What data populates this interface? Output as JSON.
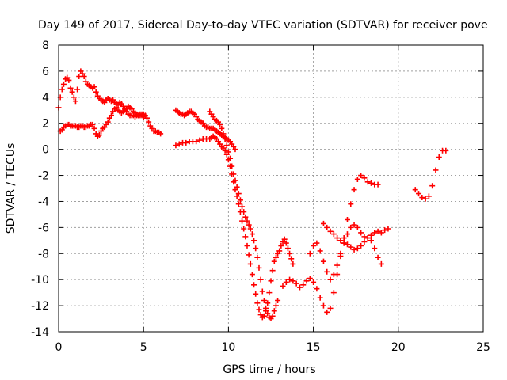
{
  "chart_data": {
    "type": "scatter",
    "title": "Day 149 of 2017, Sidereal Day-to-day VTEC variation (SDTVAR) for receiver pove",
    "xlabel": "GPS time / hours",
    "ylabel": "SDTVAR / TECUs",
    "xlim": [
      0,
      25
    ],
    "ylim": [
      -14,
      8
    ],
    "xticks": [
      0,
      5,
      10,
      15,
      20,
      25
    ],
    "yticks": [
      -14,
      -12,
      -10,
      -8,
      -6,
      -4,
      -2,
      0,
      2,
      4,
      6,
      8
    ],
    "grid": true,
    "marker": "plus",
    "color": "#ff0000",
    "series": [
      {
        "x": [
          0.0,
          0.1,
          0.2,
          0.3,
          0.4,
          0.5,
          0.6,
          0.7,
          0.8,
          0.9,
          1.0,
          1.1,
          1.2,
          1.3,
          1.4,
          1.5,
          1.6,
          1.7,
          1.8,
          1.9,
          2.0,
          2.1,
          2.2,
          2.3,
          2.4,
          2.5,
          2.6,
          2.7,
          2.8,
          2.9,
          3.0,
          3.1,
          3.2,
          3.3,
          3.4,
          3.5,
          3.6,
          3.7,
          3.8,
          3.9,
          4.0,
          4.1,
          4.2,
          4.3,
          4.4,
          4.5,
          4.6,
          4.7,
          4.8,
          4.9,
          5.0,
          5.1,
          5.2,
          5.3,
          5.4,
          5.5,
          5.6,
          5.7,
          5.8,
          5.9,
          6.0
        ],
        "y": [
          3.2,
          4.0,
          4.6,
          5.0,
          5.4,
          5.5,
          5.3,
          4.7,
          4.4,
          4.0,
          3.7,
          4.6,
          5.6,
          6.0,
          5.8,
          5.6,
          5.2,
          5.0,
          4.9,
          4.8,
          4.7,
          4.8,
          4.4,
          4.1,
          3.9,
          3.8,
          3.7,
          3.6,
          3.8,
          3.9,
          3.8,
          3.7,
          3.8,
          3.6,
          3.5,
          3.4,
          3.6,
          3.5,
          3.3,
          3.1,
          2.9,
          2.7,
          2.6,
          2.6,
          2.6,
          2.5,
          2.6,
          2.6,
          2.7,
          2.6,
          2.5,
          2.6,
          2.4,
          2.1,
          1.8,
          1.6,
          1.4,
          1.4,
          1.3,
          1.3,
          1.2
        ]
      },
      {
        "x": [
          0.1,
          0.2,
          0.3,
          0.4,
          0.5,
          0.6,
          0.7,
          0.8,
          0.9,
          1.0,
          1.1,
          1.2,
          1.3,
          1.4,
          1.5,
          1.6,
          1.7,
          1.8,
          1.9,
          2.0,
          2.1,
          2.2,
          2.3,
          2.4,
          2.5,
          2.6,
          2.7,
          2.8,
          2.9,
          3.0,
          3.1,
          3.2,
          3.3,
          3.4,
          3.5,
          3.6,
          3.7,
          3.8,
          3.9,
          4.0,
          4.1,
          4.2,
          4.3,
          4.4,
          4.5,
          4.6,
          4.7,
          4.8,
          4.9,
          5.0
        ],
        "y": [
          1.4,
          1.5,
          1.7,
          1.8,
          1.9,
          1.9,
          1.8,
          1.8,
          1.8,
          1.8,
          1.7,
          1.7,
          1.8,
          1.8,
          1.7,
          1.7,
          1.8,
          1.8,
          1.9,
          1.9,
          1.6,
          1.2,
          1.0,
          1.1,
          1.4,
          1.6,
          1.7,
          1.9,
          2.1,
          2.4,
          2.6,
          2.9,
          3.1,
          3.2,
          3.0,
          2.9,
          2.8,
          2.9,
          3.0,
          3.1,
          3.3,
          3.2,
          3.1,
          2.9,
          2.8,
          2.7,
          2.6,
          2.6,
          2.7,
          2.7
        ]
      },
      {
        "x": [
          6.9,
          7.0,
          7.1,
          7.2,
          7.3,
          7.4,
          7.5,
          7.6,
          7.7,
          7.8,
          7.9,
          8.0,
          8.1,
          8.2,
          8.3,
          8.4,
          8.5,
          8.6,
          8.7,
          8.8,
          8.9,
          9.0,
          9.1,
          9.2,
          9.3,
          9.4,
          9.5,
          9.6,
          9.7,
          9.8,
          9.9,
          10.0,
          10.1,
          10.2,
          10.3,
          10.4
        ],
        "y": [
          3.0,
          2.9,
          2.8,
          2.7,
          2.7,
          2.6,
          2.7,
          2.8,
          2.9,
          2.9,
          2.8,
          2.7,
          2.5,
          2.3,
          2.2,
          2.1,
          2.0,
          1.8,
          1.7,
          1.7,
          1.6,
          1.6,
          1.6,
          1.5,
          1.4,
          1.3,
          1.2,
          1.1,
          1.0,
          0.9,
          0.8,
          0.7,
          0.6,
          0.4,
          0.2,
          0.0
        ]
      },
      {
        "x": [
          6.9,
          7.1,
          7.3,
          7.5,
          7.7,
          7.9,
          8.1,
          8.3,
          8.5,
          8.7,
          8.9,
          9.0,
          9.1,
          9.2,
          9.3,
          9.4,
          9.5,
          9.6,
          9.7,
          9.8,
          9.9,
          10.0,
          10.1,
          10.2,
          10.3,
          10.4,
          10.5,
          10.6,
          10.7,
          10.8,
          10.9,
          11.0,
          11.1,
          11.2,
          11.3,
          11.4,
          11.5,
          11.6,
          11.7,
          11.8,
          11.9,
          12.0,
          12.1,
          12.2,
          12.3,
          12.4,
          12.5,
          12.6,
          12.7,
          12.8,
          12.9,
          13.0,
          13.1,
          13.2,
          13.3,
          13.4,
          13.5,
          13.6,
          13.7,
          13.8
        ],
        "y": [
          0.3,
          0.4,
          0.5,
          0.5,
          0.6,
          0.6,
          0.6,
          0.7,
          0.8,
          0.8,
          0.8,
          0.9,
          1.0,
          0.9,
          0.8,
          0.6,
          0.4,
          0.2,
          0.1,
          -0.1,
          -0.4,
          -0.8,
          -1.3,
          -1.9,
          -2.5,
          -3.1,
          -3.6,
          -4.2,
          -4.8,
          -5.5,
          -6.1,
          -6.7,
          -7.4,
          -8.1,
          -8.8,
          -9.6,
          -10.4,
          -11.1,
          -11.8,
          -12.3,
          -12.7,
          -12.9,
          -12.8,
          -12.4,
          -11.8,
          -11.0,
          -10.1,
          -9.3,
          -8.6,
          -8.3,
          -8.0,
          -7.8,
          -7.4,
          -7.1,
          -6.9,
          -7.2,
          -7.6,
          -8.0,
          -8.4,
          -8.8
        ]
      },
      {
        "x": [
          8.9,
          9.0,
          9.1,
          9.2,
          9.3,
          9.4,
          9.5,
          9.6,
          9.7,
          9.8,
          9.9,
          10.0,
          10.1,
          10.2,
          10.3,
          10.4,
          10.5,
          10.6,
          10.7,
          10.8,
          10.9,
          11.0,
          11.1,
          11.2,
          11.3,
          11.4,
          11.5,
          11.6,
          11.7,
          11.8,
          11.9,
          12.0,
          12.1,
          12.2,
          12.3,
          12.4,
          12.5,
          12.6,
          12.7,
          12.8,
          12.9
        ],
        "y": [
          2.9,
          2.7,
          2.5,
          2.3,
          2.2,
          2.1,
          1.9,
          1.6,
          1.2,
          0.8,
          0.3,
          -0.2,
          -0.7,
          -1.3,
          -1.9,
          -2.4,
          -2.9,
          -3.4,
          -3.9,
          -4.4,
          -4.8,
          -5.2,
          -5.5,
          -5.8,
          -6.1,
          -6.5,
          -7.0,
          -7.6,
          -8.3,
          -9.1,
          -10.0,
          -10.9,
          -11.6,
          -12.2,
          -12.6,
          -12.9,
          -13.0,
          -12.8,
          -12.4,
          -12.0,
          -11.6
        ]
      },
      {
        "x": [
          13.2,
          13.4,
          13.6,
          13.8,
          14.0,
          14.2,
          14.4,
          14.6,
          14.8,
          15.0,
          15.2,
          15.4,
          15.6,
          15.8,
          16.0,
          16.2,
          16.4,
          16.6,
          16.8,
          17.0,
          17.2,
          17.4,
          17.6,
          17.8,
          18.0,
          18.2,
          18.4,
          18.6,
          18.8
        ],
        "y": [
          -10.5,
          -10.2,
          -10.0,
          -10.1,
          -10.3,
          -10.6,
          -10.4,
          -10.1,
          -9.9,
          -10.2,
          -10.7,
          -11.4,
          -12.0,
          -12.5,
          -12.2,
          -11.0,
          -9.6,
          -8.2,
          -6.8,
          -5.4,
          -4.2,
          -3.1,
          -2.3,
          -2.0,
          -2.2,
          -2.5,
          -2.6,
          -2.7,
          -2.7
        ]
      },
      {
        "x": [
          14.8,
          15.0,
          15.2,
          15.4,
          15.6,
          15.8,
          16.0,
          16.2,
          16.4,
          16.6,
          16.8,
          17.0,
          17.2,
          17.4,
          17.6,
          17.8,
          18.0,
          18.2,
          18.4,
          18.6,
          18.8,
          19.0,
          19.2,
          19.4
        ],
        "y": [
          -8.0,
          -7.4,
          -7.2,
          -7.8,
          -8.6,
          -9.4,
          -10.0,
          -9.6,
          -8.9,
          -8.0,
          -7.2,
          -6.5,
          -6.0,
          -5.8,
          -6.0,
          -6.4,
          -6.7,
          -6.8,
          -6.6,
          -6.4,
          -6.3,
          -6.4,
          -6.2,
          -6.1
        ]
      },
      {
        "x": [
          15.6,
          15.8,
          16.0,
          16.2,
          16.4,
          16.6,
          16.8,
          17.0,
          17.2,
          17.4,
          17.6,
          17.8,
          18.0,
          18.2,
          18.4,
          18.6,
          18.8,
          19.0
        ],
        "y": [
          -5.7,
          -6.0,
          -6.3,
          -6.5,
          -6.8,
          -7.0,
          -7.2,
          -7.3,
          -7.5,
          -7.7,
          -7.6,
          -7.4,
          -7.1,
          -6.8,
          -7.0,
          -7.6,
          -8.3,
          -8.8
        ]
      },
      {
        "x": [
          21.0,
          21.2,
          21.4,
          21.6,
          21.8,
          22.0,
          22.2,
          22.4,
          22.6,
          22.8
        ],
        "y": [
          -3.1,
          -3.4,
          -3.7,
          -3.8,
          -3.6,
          -2.8,
          -1.6,
          -0.6,
          -0.1,
          -0.1
        ]
      }
    ]
  }
}
